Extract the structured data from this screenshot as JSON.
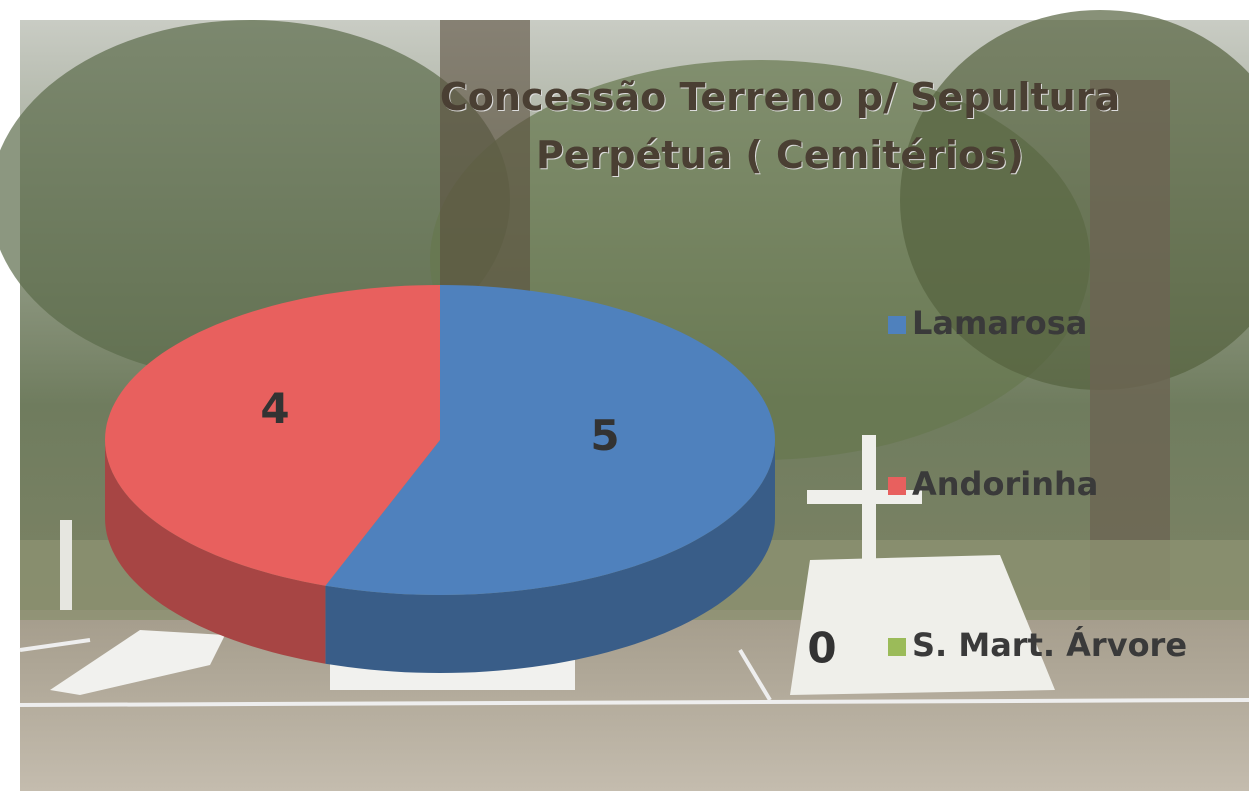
{
  "chart_data": {
    "type": "pie3d",
    "title": "Concessão Terreno p/ Sepultura Perpétua ( Cemitérios)",
    "categories": [
      "Lamarosa",
      "Andorinha",
      "S. Mart. Árvore"
    ],
    "values": [
      5,
      4,
      0
    ],
    "colors": [
      "#4f81bd",
      "#e8605e",
      "#9bbb59"
    ]
  }
}
